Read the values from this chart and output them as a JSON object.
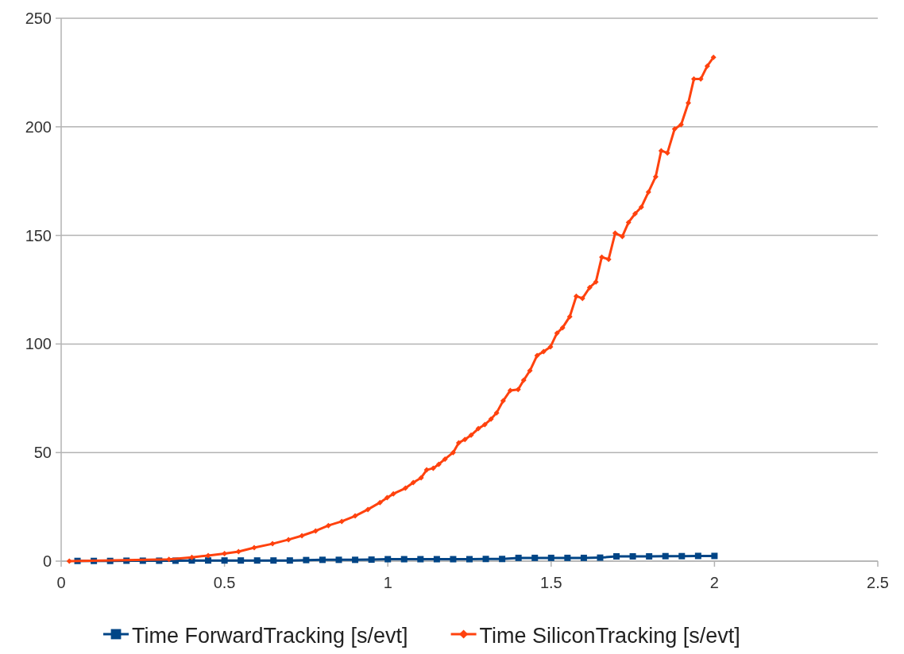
{
  "chart_data": {
    "type": "line",
    "xlim": [
      0,
      2.5
    ],
    "xticks": [
      0,
      0.5,
      1,
      1.5,
      2,
      2.5
    ],
    "ylim": [
      0,
      250
    ],
    "yticks": [
      0,
      50,
      100,
      150,
      200,
      250
    ],
    "grid": "y",
    "legend": "bottom",
    "series": [
      {
        "name": "Time ForwardTracking [s/evt]",
        "color": "#004586",
        "marker": "square",
        "x": [
          0.05,
          0.1,
          0.15,
          0.2,
          0.25,
          0.3,
          0.35,
          0.4,
          0.45,
          0.5,
          0.55,
          0.6,
          0.65,
          0.7,
          0.75,
          0.8,
          0.85,
          0.9,
          0.95,
          1.0,
          1.05,
          1.1,
          1.15,
          1.2,
          1.25,
          1.3,
          1.35,
          1.4,
          1.45,
          1.5,
          1.55,
          1.6,
          1.65,
          1.7,
          1.75,
          1.8,
          1.85,
          1.9,
          1.95,
          2.0
        ],
        "values": [
          0.1,
          0.1,
          0.1,
          0.2,
          0.2,
          0.2,
          0.2,
          0.3,
          0.3,
          0.3,
          0.3,
          0.3,
          0.3,
          0.3,
          0.5,
          0.6,
          0.6,
          0.6,
          0.7,
          0.9,
          0.9,
          0.9,
          0.9,
          0.9,
          0.9,
          1.0,
          1.0,
          1.5,
          1.5,
          1.5,
          1.5,
          1.5,
          1.6,
          2.2,
          2.2,
          2.2,
          2.3,
          2.3,
          2.4,
          2.4
        ]
      },
      {
        "name": "Time SiliconTracking [s/evt]",
        "color": "#ff420e",
        "marker": "diamond",
        "x": [
          0.025,
          0.33,
          0.4,
          0.45,
          0.5,
          0.543,
          0.591,
          0.647,
          0.696,
          0.737,
          0.779,
          0.818,
          0.859,
          0.9,
          0.939,
          0.976,
          0.998,
          1.017,
          1.054,
          1.078,
          1.102,
          1.119,
          1.139,
          1.156,
          1.175,
          1.2,
          1.217,
          1.236,
          1.255,
          1.277,
          1.297,
          1.316,
          1.333,
          1.353,
          1.375,
          1.399,
          1.416,
          1.435,
          1.457,
          1.477,
          1.498,
          1.518,
          1.535,
          1.557,
          1.577,
          1.596,
          1.618,
          1.637,
          1.655,
          1.676,
          1.696,
          1.718,
          1.737,
          1.757,
          1.776,
          1.798,
          1.82,
          1.837,
          1.856,
          1.878,
          1.898,
          1.92,
          1.937,
          1.958,
          1.978,
          1.997
        ],
        "values": [
          0,
          0.8,
          1.7,
          2.6,
          3.5,
          4.4,
          6.2,
          8,
          9.9,
          11.7,
          13.9,
          16.4,
          18.3,
          20.8,
          23.8,
          27,
          29.2,
          31,
          33.6,
          36.2,
          38.4,
          42,
          42.8,
          44.6,
          47,
          50,
          54.5,
          56,
          58,
          61,
          62.9,
          65.4,
          68.3,
          73.8,
          78.6,
          79,
          83.3,
          87.7,
          94.7,
          96.5,
          98.7,
          105,
          107.5,
          112.6,
          122,
          121,
          126,
          128.6,
          140,
          139,
          151,
          149.5,
          156,
          160,
          163,
          170,
          177,
          189,
          188,
          199,
          201,
          211,
          222,
          222,
          228,
          232
        ]
      }
    ]
  }
}
